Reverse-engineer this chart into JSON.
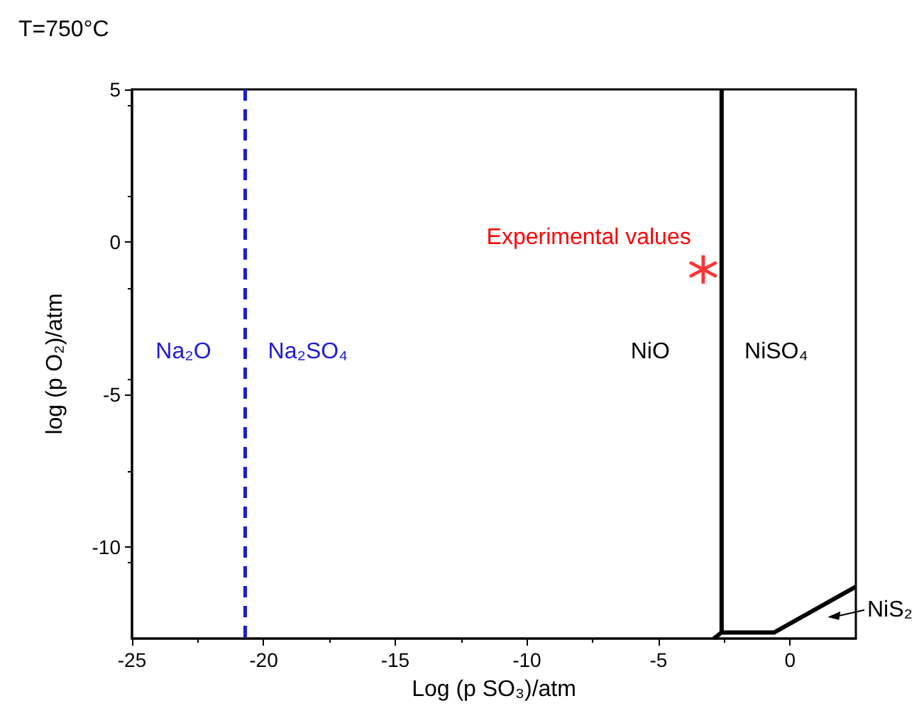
{
  "chart_data": {
    "type": "line",
    "title": "T=750°C",
    "xlabel": "Log (p SO₃)/atm",
    "ylabel": "log (p O₂)/atm",
    "xlim": [
      -25,
      2.5
    ],
    "xticks": [
      -25,
      -20,
      -15,
      -10,
      -5,
      0
    ],
    "ylim": [
      -13,
      5
    ],
    "yticks": [
      -10,
      -5,
      0,
      5
    ],
    "grid": false,
    "marker": "none",
    "series": [
      {
        "color": "#1c1cd6",
        "line_style": "dashed",
        "x": [
          -20.7,
          -20.7
        ],
        "values": [
          5,
          -13
        ]
      },
      {
        "color": "#000000",
        "line_style": "solid",
        "x": [
          -2.6,
          -2.6
        ],
        "values": [
          5,
          -12.8
        ]
      },
      {
        "color": "#000000",
        "line_style": "solid",
        "x": [
          -2.9,
          -2.6,
          -0.6,
          2.5
        ],
        "values": [
          -13,
          -12.8,
          -12.8,
          -11.3
        ]
      },
      {
        "type": "scatter",
        "marker": "star",
        "color": "#ff0000",
        "x": [
          -3.3
        ],
        "values": [
          -0.9
        ]
      }
    ],
    "annotations": [
      "Na₂O",
      "Na₂SO₄",
      "NiO",
      "NiSO₄",
      "Experimental values",
      "NiS₂"
    ]
  }
}
